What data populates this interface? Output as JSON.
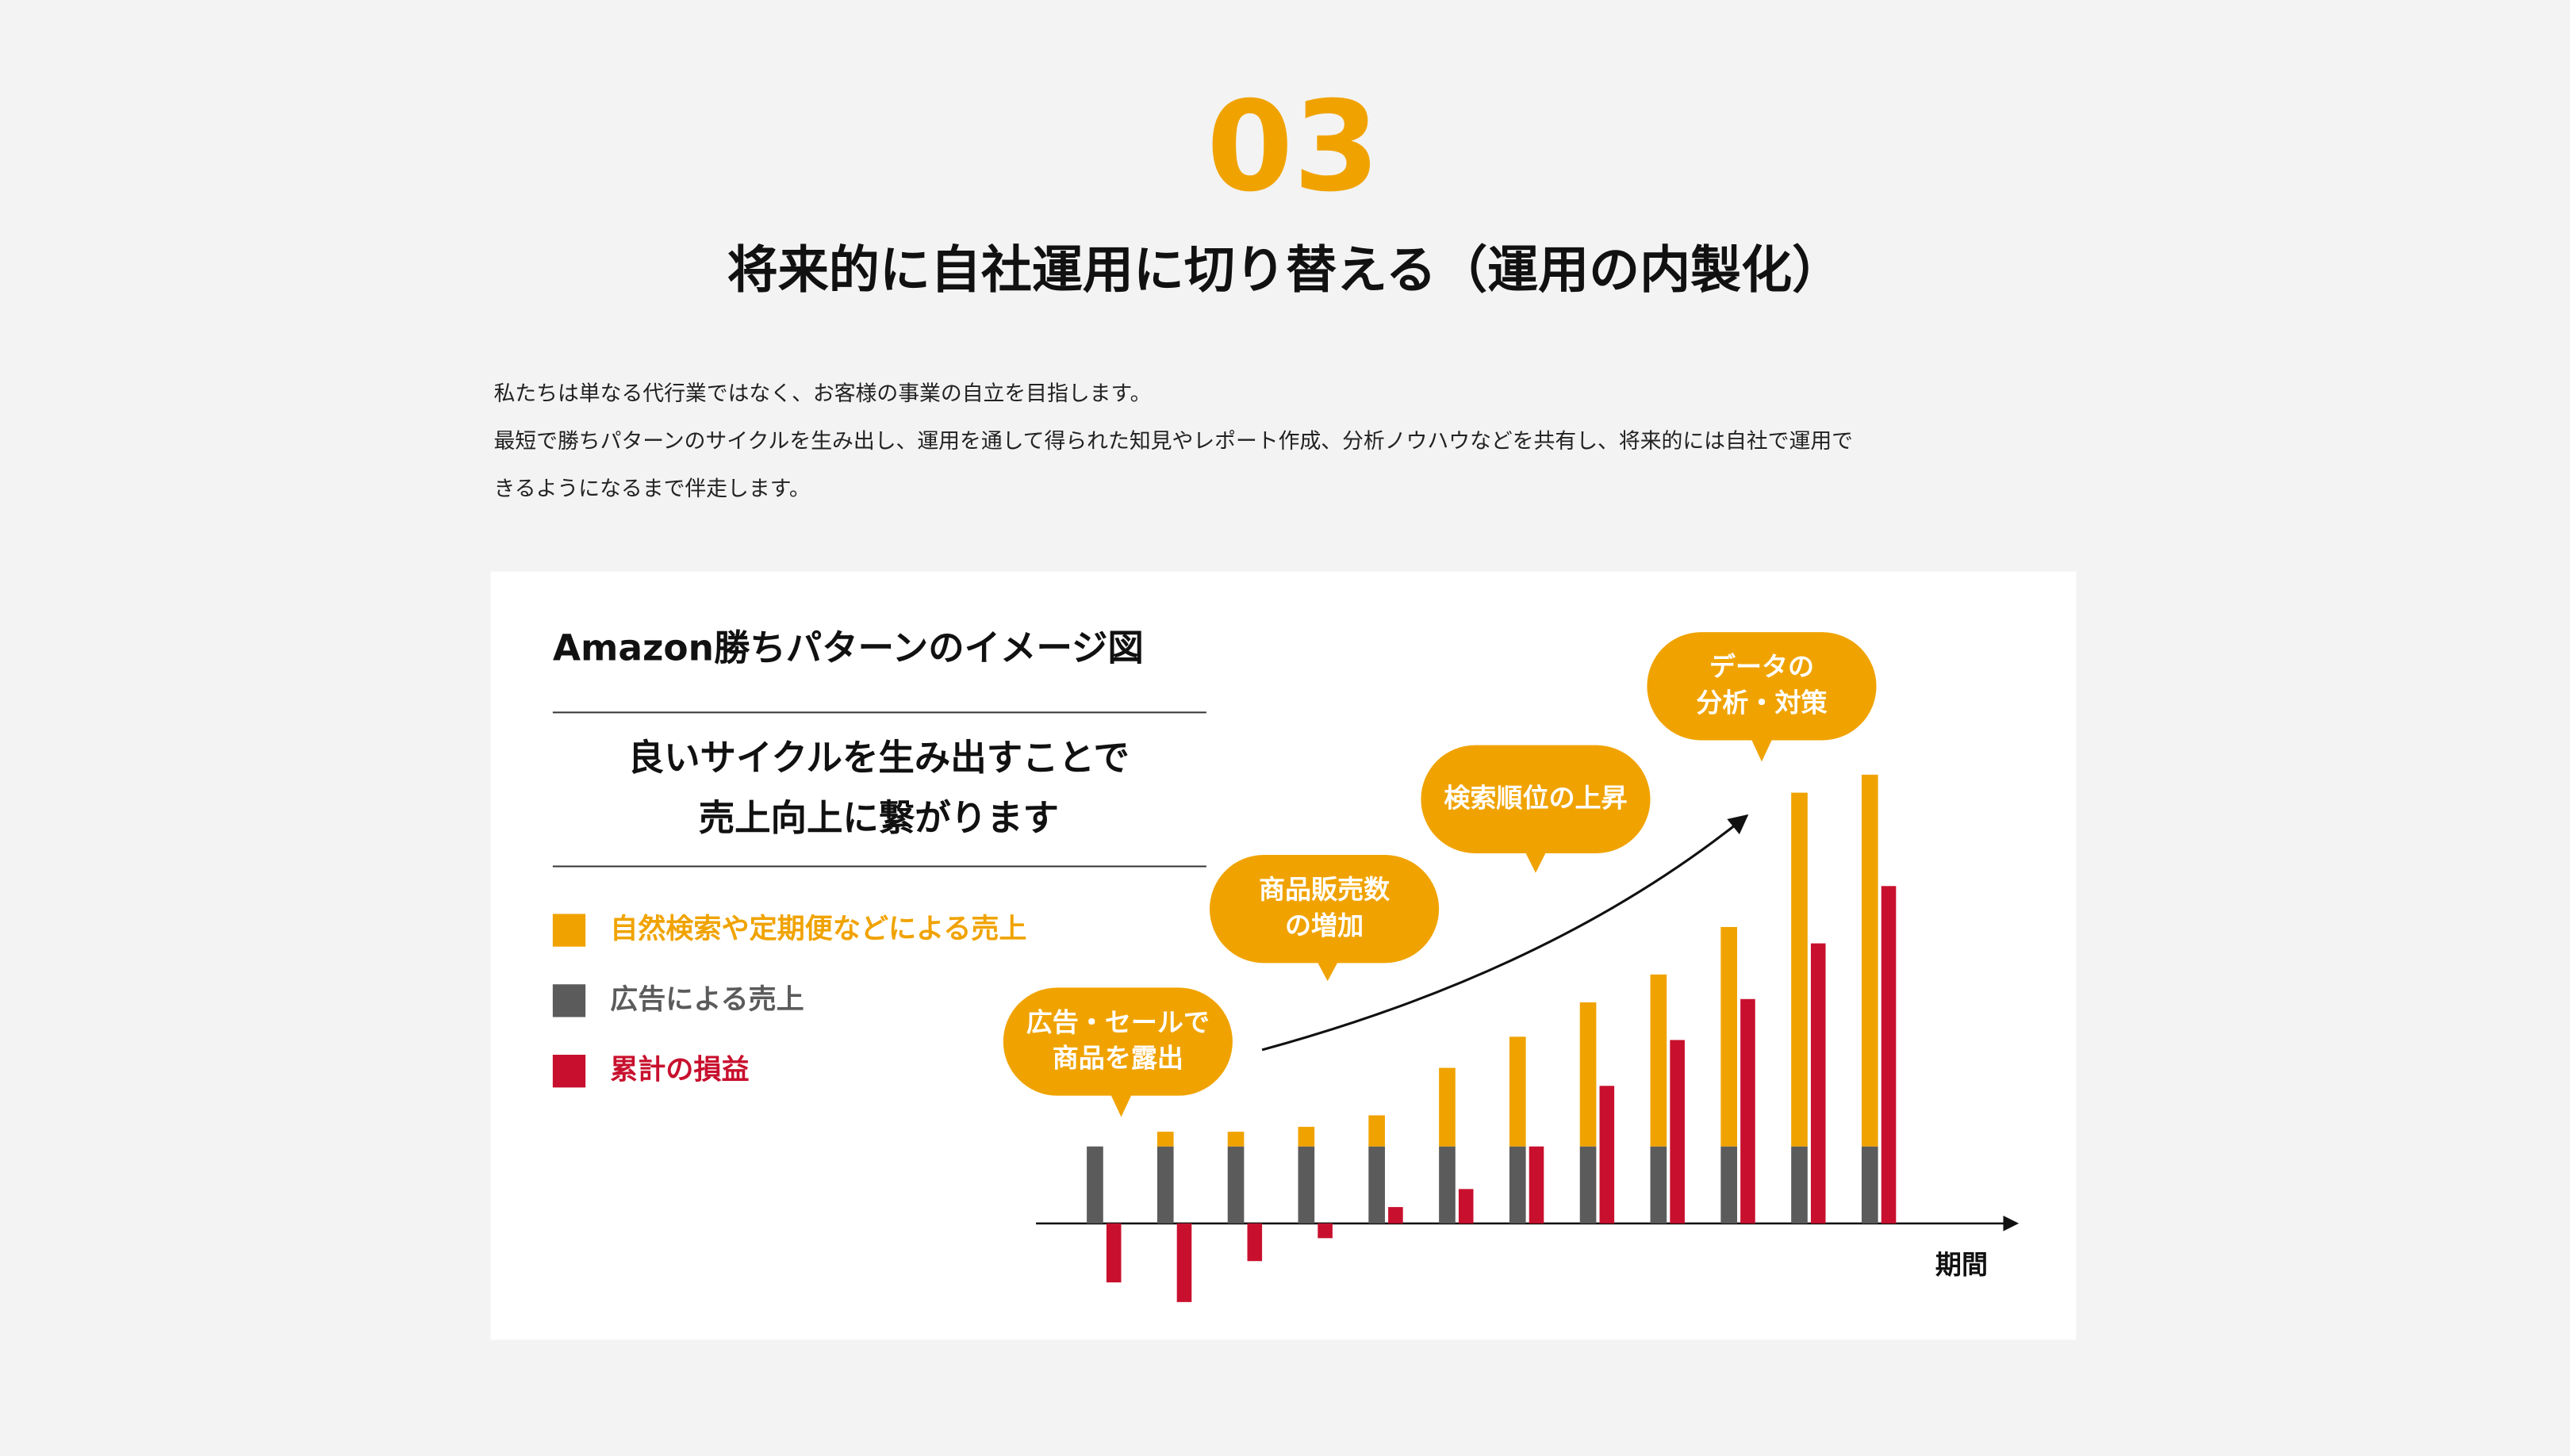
{
  "header": {
    "number": "03",
    "title": "将来的に自社運用に切り替える（運用の内製化）",
    "description": [
      "私たちは単なる代行業ではなく、お客様の事業の自立を目指します。",
      "最短で勝ちパターンのサイクルを生み出し、運用を通して得られた知見やレポート作成、分析ノウハウなどを共有し、将来的には自社で運用で",
      "きるようになるまで伴走します。"
    ]
  },
  "chart_data": {
    "type": "bar",
    "title": "Amazon勝ちパターンのイメージ図",
    "subtitle": [
      "良いサイクルを生み出すことで",
      "売上向上に繋がります"
    ],
    "x_label": "期間",
    "categories": [
      null,
      null,
      null,
      null,
      null,
      null,
      null,
      null,
      null,
      null,
      null,
      null
    ],
    "series": [
      {
        "name": "自然検索や定期便などによる売上",
        "color": "#f0a300",
        "stack": "sales",
        "values": [
          0,
          9,
          9,
          12,
          19,
          48,
          67,
          88,
          105,
          134,
          216,
          227
        ]
      },
      {
        "name": "広告による売上",
        "color": "#5b5b5b",
        "stack": "sales",
        "values": [
          47,
          47,
          47,
          47,
          47,
          47,
          47,
          47,
          47,
          47,
          47,
          47
        ]
      },
      {
        "name": "累計の損益",
        "color": "#c8102e",
        "values": [
          -36,
          -48,
          -23,
          -9,
          10,
          21,
          47,
          84,
          112,
          137,
          171,
          206
        ]
      }
    ],
    "ylim": [
      -55,
      280
    ],
    "grid": false,
    "annotations": [
      {
        "lines": [
          "広告・セールで",
          "商品を露出"
        ],
        "color": "#f0a300"
      },
      {
        "lines": [
          "商品販売数",
          "の増加"
        ],
        "color": "#f0a300"
      },
      {
        "lines": [
          "検索順位の上昇"
        ],
        "color": "#f0a300"
      },
      {
        "lines": [
          "データの",
          "分析・対策"
        ],
        "color": "#f0a300"
      }
    ]
  }
}
